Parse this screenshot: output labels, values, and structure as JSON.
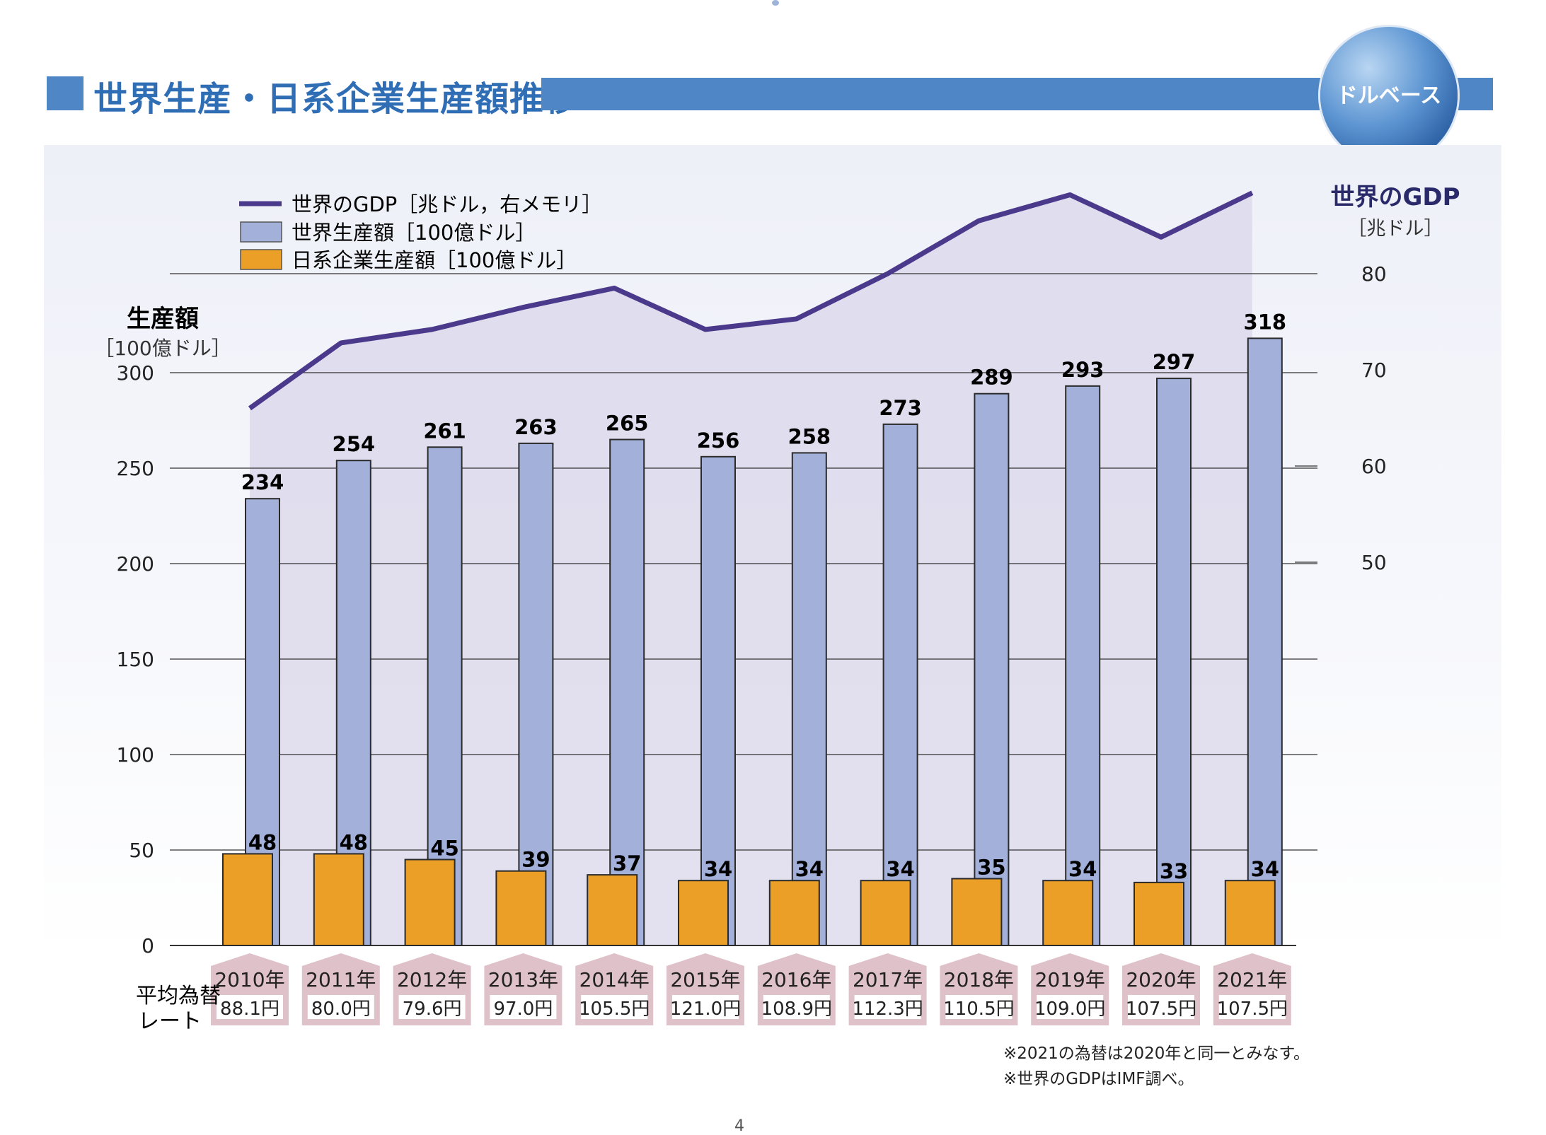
{
  "title": "世界生産・日系企業生産額推移",
  "badge_label": "ドルベース",
  "page_number": "4",
  "footnotes": [
    "※2021の為替は2020年と同一とみなす。",
    "※世界のGDPはIMF調べ。"
  ],
  "chart_data": {
    "type": "bar",
    "categories": [
      "2010年",
      "2011年",
      "2012年",
      "2013年",
      "2014年",
      "2015年",
      "2016年",
      "2017年",
      "2018年",
      "2019年",
      "2020年",
      "2021年"
    ],
    "exchange_rates": [
      "88.1円",
      "80.0円",
      "79.6円",
      "97.0円",
      "105.5円",
      "121.0円",
      "108.9円",
      "112.3円",
      "110.5円",
      "109.0円",
      "107.5円",
      "107.5円"
    ],
    "exchange_label": [
      "平均為替",
      "レート"
    ],
    "series": [
      {
        "name": "世界生産額［100億ドル］",
        "kind": "bar",
        "axis": "left",
        "color": "#a2b0da",
        "values": [
          234,
          254,
          261,
          263,
          265,
          256,
          258,
          273,
          289,
          293,
          297,
          318
        ]
      },
      {
        "name": "日系企業生産額［100億ドル］",
        "kind": "bar",
        "axis": "left",
        "color": "#ec9f26",
        "values": [
          48,
          48,
          45,
          39,
          37,
          34,
          34,
          34,
          35,
          34,
          33,
          34
        ]
      },
      {
        "name": "世界のGDP［兆ドル，右メモリ］",
        "kind": "line",
        "axis": "right",
        "color": "#4b3a8c",
        "values": [
          66.0,
          72.8,
          74.2,
          76.5,
          78.5,
          74.2,
          75.3,
          80.0,
          85.5,
          88.2,
          83.8,
          88.4
        ]
      }
    ],
    "y_left": {
      "label": "生産額",
      "unit": "［100億ドル］",
      "min": 0,
      "max": 300,
      "ticks": [
        "0",
        "50",
        "100",
        "150",
        "200",
        "250",
        "300"
      ]
    },
    "y_right": {
      "label": "世界のGDP",
      "unit": "［兆ドル］",
      "ticks": [
        "50",
        "60",
        "70",
        "80"
      ],
      "tick_values": [
        50,
        60,
        70,
        80
      ]
    },
    "legend": [
      "世界のGDP［兆ドル，右メモリ］",
      "世界生産額［100億ドル］",
      "日系企業生産額［100億ドル］"
    ],
    "legend_position": "top-left",
    "colors": {
      "line": "#4b3a8c",
      "world_bar": "#a2b0da",
      "japan_bar": "#ec9f26",
      "area": "#d9d5ea",
      "label_box": "#dfc1c9"
    }
  }
}
